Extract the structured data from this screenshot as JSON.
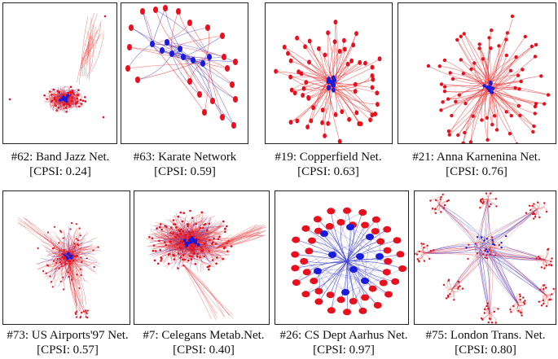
{
  "colors": {
    "peripheral": "#e8101c",
    "core": "#1a1adc",
    "edge_red": "#ee3030",
    "edge_blue": "#4040cc"
  },
  "networks": [
    {
      "id": "band-jazz",
      "name": "#62: Band Jazz Net.",
      "cpsi_label": "[CPSI: 0.24]",
      "cpsi": 0.24
    },
    {
      "id": "karate",
      "name": "#63: Karate Network",
      "cpsi_label": "[CPSI: 0.59]",
      "cpsi": 0.59
    },
    {
      "id": "copperfield",
      "name": "#19: Copperfield Net.",
      "cpsi_label": "[CPSI: 0.63]",
      "cpsi": 0.63
    },
    {
      "id": "anna-karenina",
      "name": "#21: Anna Karnenina Net.",
      "cpsi_label": "[CPSI: 0.76]",
      "cpsi": 0.76
    },
    {
      "id": "us-airports",
      "name": "#73: US Airports'97 Net.",
      "cpsi_label": "[CPSI: 0.57]",
      "cpsi": 0.57
    },
    {
      "id": "celegans",
      "name": "#7: Celegans Metab.Net.",
      "cpsi_label": "[CPSI: 0.40]",
      "cpsi": 0.4
    },
    {
      "id": "cs-aarhus",
      "name": "#26: CS Dept Aarhus Net.",
      "cpsi_label": "[CPSI: 0.97]",
      "cpsi": 0.97
    },
    {
      "id": "london",
      "name": "#75:  London Trans. Net.",
      "cpsi_label": "[CPSI: 0.80]",
      "cpsi": 0.8
    }
  ]
}
